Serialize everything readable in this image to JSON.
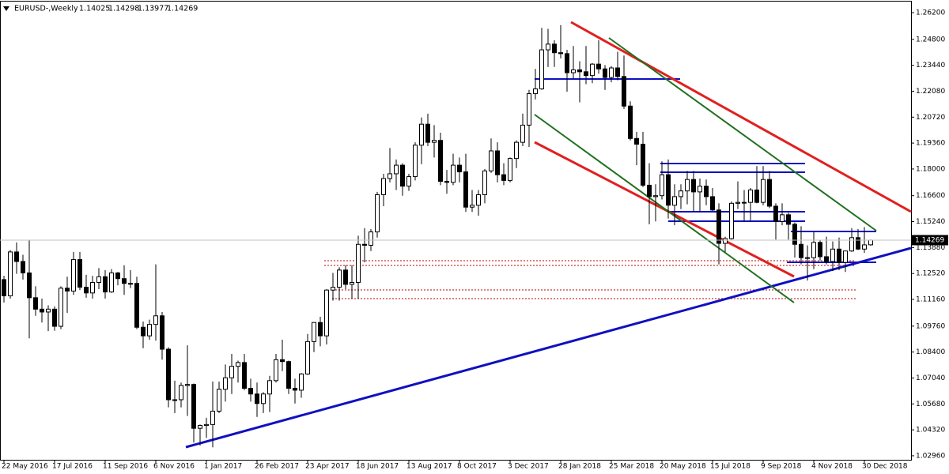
{
  "chart_data": {
    "type": "candlestick",
    "title": "EURUSD-,Weekly",
    "ylim": [
      1.0275,
      1.2678
    ],
    "yticks": [
      {
        "value": 1.262,
        "label": "1.26200"
      },
      {
        "value": 1.248,
        "label": "1.24800"
      },
      {
        "value": 1.2344,
        "label": "1.23440"
      },
      {
        "value": 1.2208,
        "label": "1.22080"
      },
      {
        "value": 1.2072,
        "label": "1.20720"
      },
      {
        "value": 1.1936,
        "label": "1.19360"
      },
      {
        "value": 1.18,
        "label": "1.18000"
      },
      {
        "value": 1.166,
        "label": "1.16600"
      },
      {
        "value": 1.1524,
        "label": "1.15240"
      },
      {
        "value": 1.1388,
        "label": "1.13880"
      },
      {
        "value": 1.1252,
        "label": "1.12520"
      },
      {
        "value": 1.1116,
        "label": "1.11160"
      },
      {
        "value": 1.0976,
        "label": "1.09760"
      },
      {
        "value": 1.084,
        "label": "1.08400"
      },
      {
        "value": 1.0704,
        "label": "1.07040"
      },
      {
        "value": 1.0568,
        "label": "1.05680"
      },
      {
        "value": 1.0432,
        "label": "1.04320"
      },
      {
        "value": 1.0296,
        "label": "1.02960"
      }
    ],
    "categories": [
      "22 May 2016",
      null,
      null,
      null,
      null,
      null,
      null,
      null,
      "17 Jul 2016",
      null,
      null,
      null,
      null,
      null,
      null,
      null,
      "11 Sep 2016",
      null,
      null,
      null,
      null,
      null,
      null,
      null,
      "6 Nov 2016",
      null,
      null,
      null,
      null,
      null,
      null,
      null,
      "1 Jan 2017",
      null,
      null,
      null,
      null,
      null,
      null,
      null,
      "26 Feb 2017",
      null,
      null,
      null,
      null,
      null,
      null,
      null,
      "23 Apr 2017",
      null,
      null,
      null,
      null,
      null,
      null,
      null,
      "18 Jun 2017",
      null,
      null,
      null,
      null,
      null,
      null,
      null,
      "13 Aug 2017",
      null,
      null,
      null,
      null,
      null,
      null,
      null,
      "8 Oct 2017",
      null,
      null,
      null,
      null,
      null,
      null,
      null,
      "3 Dec 2017",
      null,
      null,
      null,
      null,
      null,
      null,
      null,
      "28 Jan 2018",
      null,
      null,
      null,
      null,
      null,
      null,
      null,
      "25 Mar 2018",
      null,
      null,
      null,
      null,
      null,
      null,
      null,
      "20 May 2018",
      null,
      null,
      null,
      null,
      null,
      null,
      null,
      "15 Jul 2018",
      null,
      null,
      null,
      null,
      null,
      null,
      null,
      "9 Sep 2018",
      null,
      null,
      null,
      null,
      null,
      null,
      null,
      "4 Nov 2018",
      null,
      null,
      null,
      null,
      null,
      null,
      null,
      "30 Dec 2018",
      null
    ],
    "ohlc": [
      [
        1.122,
        1.124,
        1.11,
        1.1135
      ],
      [
        1.1135,
        1.1375,
        1.112,
        1.1365
      ],
      [
        1.1365,
        1.1415,
        1.125,
        1.1315
      ],
      [
        1.1315,
        1.135,
        1.122,
        1.1255
      ],
      [
        1.1255,
        1.1428,
        1.0912,
        1.1125
      ],
      [
        1.1125,
        1.1185,
        1.103,
        1.1065
      ],
      [
        1.1065,
        1.112,
        1.0995,
        1.105
      ],
      [
        1.105,
        1.1085,
        1.095,
        1.1065
      ],
      [
        1.1065,
        1.108,
        1.0952,
        1.0975
      ],
      [
        1.0975,
        1.1185,
        1.096,
        1.1175
      ],
      [
        1.1175,
        1.1235,
        1.1045,
        1.116
      ],
      [
        1.116,
        1.1365,
        1.114,
        1.1325
      ],
      [
        1.1325,
        1.1365,
        1.1165,
        1.118
      ],
      [
        1.118,
        1.1245,
        1.1125,
        1.115
      ],
      [
        1.115,
        1.124,
        1.112,
        1.1205
      ],
      [
        1.1205,
        1.128,
        1.117,
        1.1235
      ],
      [
        1.1235,
        1.127,
        1.112,
        1.1155
      ],
      [
        1.1155,
        1.1275,
        1.115,
        1.1255
      ],
      [
        1.1255,
        1.126,
        1.119,
        1.1225
      ],
      [
        1.1225,
        1.1295,
        1.114,
        1.12
      ],
      [
        1.12,
        1.127,
        1.1175,
        1.12
      ],
      [
        1.12,
        1.1235,
        1.096,
        1.097
      ],
      [
        1.097,
        1.1,
        1.086,
        1.0925
      ],
      [
        1.0925,
        1.101,
        1.0905,
        1.0985
      ],
      [
        1.0985,
        1.13,
        1.09,
        1.103
      ],
      [
        1.103,
        1.105,
        1.08,
        1.0855
      ],
      [
        1.0855,
        1.0865,
        1.055,
        1.059
      ],
      [
        1.059,
        1.069,
        1.052,
        1.059
      ],
      [
        1.059,
        1.068,
        1.055,
        1.0665
      ],
      [
        1.0665,
        1.0875,
        1.0505,
        1.067
      ],
      [
        1.067,
        1.0675,
        1.0365,
        1.044
      ],
      [
        1.044,
        1.046,
        1.035,
        1.0455
      ],
      [
        1.0455,
        1.0495,
        1.039,
        1.046
      ],
      [
        1.046,
        1.0685,
        1.034,
        1.053
      ],
      [
        1.053,
        1.0685,
        1.052,
        1.0645
      ],
      [
        1.0645,
        1.0775,
        1.058,
        1.0705
      ],
      [
        1.0705,
        1.083,
        1.062,
        1.0765
      ],
      [
        1.0765,
        1.0795,
        1.068,
        1.0785
      ],
      [
        1.0785,
        1.083,
        1.064,
        1.065
      ],
      [
        1.065,
        1.07,
        1.058,
        1.062
      ],
      [
        1.062,
        1.068,
        1.05,
        1.057
      ],
      [
        1.057,
        1.063,
        1.052,
        1.062
      ],
      [
        1.062,
        1.0715,
        1.0525,
        1.069
      ],
      [
        1.069,
        1.083,
        1.068,
        1.08
      ],
      [
        1.08,
        1.0905,
        1.074,
        1.079
      ],
      [
        1.079,
        1.0795,
        1.062,
        1.065
      ],
      [
        1.065,
        1.07,
        1.057,
        1.064
      ],
      [
        1.064,
        1.073,
        1.06,
        1.0725
      ],
      [
        1.0725,
        1.0935,
        1.072,
        1.0895
      ],
      [
        1.0895,
        1.099,
        1.084,
        1.0995
      ],
      [
        1.0995,
        1.1025,
        1.087,
        1.0925
      ],
      [
        1.0925,
        1.117,
        1.088,
        1.1165
      ],
      [
        1.1165,
        1.1255,
        1.111,
        1.118
      ],
      [
        1.118,
        1.1285,
        1.111,
        1.127
      ],
      [
        1.127,
        1.1295,
        1.117,
        1.1195
      ],
      [
        1.1195,
        1.1295,
        1.112,
        1.1205
      ],
      [
        1.1205,
        1.145,
        1.112,
        1.1405
      ],
      [
        1.1405,
        1.149,
        1.131,
        1.14
      ],
      [
        1.14,
        1.1485,
        1.137,
        1.147
      ],
      [
        1.147,
        1.168,
        1.144,
        1.1665
      ],
      [
        1.1665,
        1.1775,
        1.1605,
        1.175
      ],
      [
        1.175,
        1.191,
        1.173,
        1.1775
      ],
      [
        1.1775,
        1.185,
        1.169,
        1.182
      ],
      [
        1.182,
        1.183,
        1.166,
        1.171
      ],
      [
        1.171,
        1.1775,
        1.1685,
        1.176
      ],
      [
        1.176,
        1.194,
        1.174,
        1.1925
      ],
      [
        1.1925,
        1.207,
        1.1825,
        1.2035
      ],
      [
        1.2035,
        1.209,
        1.192,
        1.194
      ],
      [
        1.194,
        1.203,
        1.186,
        1.195
      ],
      [
        1.195,
        1.199,
        1.1715,
        1.1735
      ],
      [
        1.1735,
        1.1795,
        1.167,
        1.173
      ],
      [
        1.173,
        1.188,
        1.1715,
        1.182
      ],
      [
        1.182,
        1.186,
        1.173,
        1.1785
      ],
      [
        1.1785,
        1.188,
        1.1575,
        1.16
      ],
      [
        1.16,
        1.169,
        1.1575,
        1.161
      ],
      [
        1.161,
        1.169,
        1.1555,
        1.1665
      ],
      [
        1.1665,
        1.18,
        1.162,
        1.179
      ],
      [
        1.179,
        1.196,
        1.178,
        1.1895
      ],
      [
        1.1895,
        1.194,
        1.173,
        1.177
      ],
      [
        1.177,
        1.183,
        1.1715,
        1.174
      ],
      [
        1.174,
        1.186,
        1.173,
        1.1855
      ],
      [
        1.1855,
        1.195,
        1.1805,
        1.194
      ],
      [
        1.194,
        1.209,
        1.192,
        1.203
      ],
      [
        1.203,
        1.2215,
        1.1915,
        1.2195
      ],
      [
        1.2195,
        1.2325,
        1.2165,
        1.222
      ],
      [
        1.222,
        1.254,
        1.2215,
        1.2425
      ],
      [
        1.2425,
        1.2535,
        1.2335,
        1.2455
      ],
      [
        1.2455,
        1.2475,
        1.2335,
        1.241
      ],
      [
        1.241,
        1.2555,
        1.238,
        1.2405
      ],
      [
        1.2405,
        1.2425,
        1.2205,
        1.2305
      ],
      [
        1.2305,
        1.2445,
        1.2275,
        1.232
      ],
      [
        1.232,
        1.2365,
        1.215,
        1.231
      ],
      [
        1.231,
        1.2445,
        1.2245,
        1.229
      ],
      [
        1.229,
        1.2355,
        1.225,
        1.235
      ],
      [
        1.235,
        1.2475,
        1.23,
        1.2325
      ],
      [
        1.2325,
        1.2345,
        1.2215,
        1.228
      ],
      [
        1.228,
        1.234,
        1.2255,
        1.233
      ],
      [
        1.233,
        1.2415,
        1.2265,
        1.2285
      ],
      [
        1.2285,
        1.2395,
        1.2115,
        1.213
      ],
      [
        1.213,
        1.2155,
        1.195,
        1.196
      ],
      [
        1.196,
        1.1995,
        1.182,
        1.193
      ],
      [
        1.193,
        1.1995,
        1.1705,
        1.1715
      ],
      [
        1.1715,
        1.183,
        1.151,
        1.1655
      ],
      [
        1.1655,
        1.172,
        1.1525,
        1.166
      ],
      [
        1.166,
        1.184,
        1.164,
        1.177
      ],
      [
        1.177,
        1.185,
        1.154,
        1.161
      ],
      [
        1.161,
        1.172,
        1.1505,
        1.1655
      ],
      [
        1.1655,
        1.172,
        1.159,
        1.1685
      ],
      [
        1.1685,
        1.179,
        1.1615,
        1.1745
      ],
      [
        1.1745,
        1.179,
        1.1575,
        1.168
      ],
      [
        1.168,
        1.175,
        1.1575,
        1.171
      ],
      [
        1.171,
        1.1745,
        1.161,
        1.1655
      ],
      [
        1.1655,
        1.17,
        1.158,
        1.1585
      ],
      [
        1.1585,
        1.162,
        1.13,
        1.141
      ],
      [
        1.141,
        1.1445,
        1.1365,
        1.1435
      ],
      [
        1.1435,
        1.163,
        1.143,
        1.162
      ],
      [
        1.162,
        1.1735,
        1.159,
        1.1625
      ],
      [
        1.1625,
        1.169,
        1.1525,
        1.1625
      ],
      [
        1.1625,
        1.17,
        1.153,
        1.169
      ],
      [
        1.169,
        1.1815,
        1.162,
        1.1625
      ],
      [
        1.1625,
        1.1815,
        1.161,
        1.1745
      ],
      [
        1.1745,
        1.179,
        1.1595,
        1.1605
      ],
      [
        1.1605,
        1.162,
        1.143,
        1.1525
      ],
      [
        1.1525,
        1.162,
        1.1505,
        1.156
      ],
      [
        1.156,
        1.157,
        1.143,
        1.151
      ],
      [
        1.151,
        1.152,
        1.1335,
        1.1405
      ],
      [
        1.1405,
        1.15,
        1.13,
        1.1335
      ],
      [
        1.1335,
        1.14,
        1.1215,
        1.1335
      ],
      [
        1.1335,
        1.147,
        1.1275,
        1.1415
      ],
      [
        1.1415,
        1.1425,
        1.132,
        1.134
      ],
      [
        1.134,
        1.1445,
        1.13,
        1.1315
      ],
      [
        1.1315,
        1.142,
        1.1265,
        1.138
      ],
      [
        1.138,
        1.144,
        1.127,
        1.131
      ],
      [
        1.131,
        1.137,
        1.126,
        1.137
      ],
      [
        1.137,
        1.149,
        1.1365,
        1.144
      ],
      [
        1.144,
        1.1485,
        1.1375,
        1.138
      ],
      [
        1.138,
        1.1495,
        1.136,
        1.1402
      ],
      [
        1.14025,
        1.14298,
        1.13977,
        1.14269
      ]
    ],
    "colors": {
      "up": "#ffffff",
      "down": "#000000",
      "outline": "#000000",
      "price_line": "#c0c0c0"
    }
  }
}
